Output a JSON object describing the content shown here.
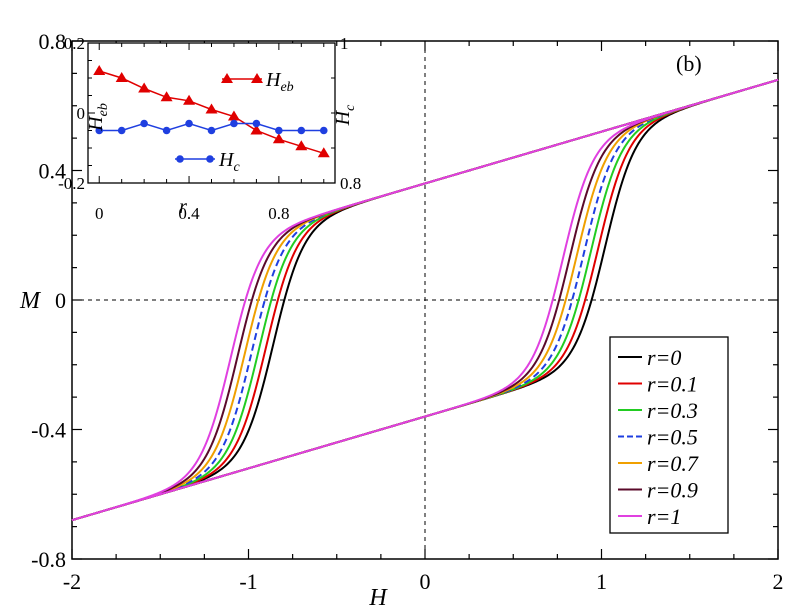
{
  "chart_data": {
    "type": "line",
    "panel_label": "(b)",
    "xlabel": "H",
    "ylabel": "M",
    "xlim": [
      -2,
      2
    ],
    "ylim": [
      -0.8,
      0.8
    ],
    "x_ticks": [
      -2,
      -1,
      0,
      1,
      2
    ],
    "x_tick_labels": [
      "-2",
      "-1",
      "0",
      "1",
      "2"
    ],
    "y_ticks": [
      -0.8,
      -0.4,
      0,
      0.4,
      0.8
    ],
    "y_tick_labels": [
      "-0.8",
      "-0.4",
      "0",
      "0.4",
      "0.8"
    ],
    "reference_lines": {
      "x": 0,
      "y": 0
    },
    "legend_position": "bottom-right",
    "loop_model": {
      "slope": 0.16,
      "saturation_amplitude": 0.36,
      "switch_width": 0.17,
      "descending_switch_fields": [
        -0.86,
        -0.9,
        -0.94,
        -0.98,
        -1.02,
        -1.06,
        -1.1
      ],
      "ascending_switch_fields": [
        1.02,
        0.98,
        0.94,
        0.9,
        0.86,
        0.82,
        0.78
      ]
    },
    "series": [
      {
        "name": "r=0",
        "color": "#000000",
        "dash": "solid"
      },
      {
        "name": "r=0.1",
        "color": "#e00000",
        "dash": "solid"
      },
      {
        "name": "r=0.3",
        "color": "#22cc22",
        "dash": "solid"
      },
      {
        "name": "r=0.5",
        "color": "#1f3fe0",
        "dash": "dashed"
      },
      {
        "name": "r=0.7",
        "color": "#f0a000",
        "dash": "solid"
      },
      {
        "name": "r=0.9",
        "color": "#5a0a2a",
        "dash": "solid"
      },
      {
        "name": "r=1",
        "color": "#e040e0",
        "dash": "solid"
      }
    ],
    "inset": {
      "xlabel": "r",
      "ylabel_left": "H_eb",
      "ylabel_right": "H_c",
      "xlim": [
        -0.05,
        1.05
      ],
      "ylim_left": [
        -0.2,
        0.2
      ],
      "ylim_right": [
        0.8,
        1.0
      ],
      "x_ticks": [
        0,
        0.4,
        0.8
      ],
      "x_tick_labels": [
        "0",
        "0.4",
        "0.8"
      ],
      "y_ticks_left": [
        -0.2,
        0,
        0.2
      ],
      "y_tick_labels_left": [
        "-0.2",
        "0",
        "0.2"
      ],
      "y_ticks_right": [
        0.8,
        1.0
      ],
      "y_tick_labels_right": [
        "0.8",
        "1"
      ],
      "series": [
        {
          "name": "H_eb",
          "axis": "left",
          "color": "#e00000",
          "marker": "triangle",
          "r": [
            0,
            0.1,
            0.2,
            0.3,
            0.4,
            0.5,
            0.6,
            0.7,
            0.8,
            0.9,
            1.0
          ],
          "values": [
            0.12,
            0.1,
            0.07,
            0.045,
            0.035,
            0.01,
            -0.01,
            -0.05,
            -0.075,
            -0.095,
            -0.115
          ]
        },
        {
          "name": "H_c",
          "axis": "right",
          "color": "#1f3fe0",
          "marker": "circle",
          "r": [
            0,
            0.1,
            0.2,
            0.3,
            0.4,
            0.5,
            0.6,
            0.7,
            0.8,
            0.9,
            1.0
          ],
          "values": [
            0.875,
            0.875,
            0.885,
            0.875,
            0.885,
            0.875,
            0.885,
            0.885,
            0.875,
            0.875,
            0.875
          ]
        }
      ]
    }
  }
}
